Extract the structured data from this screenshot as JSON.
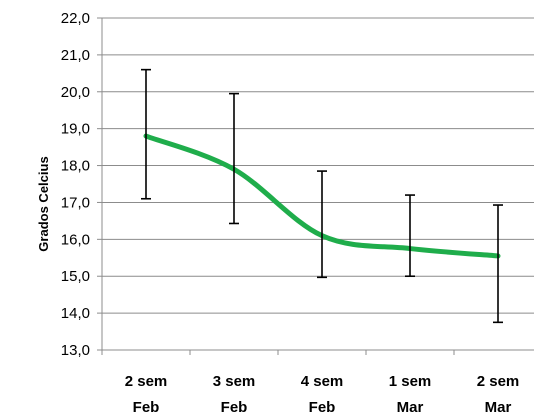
{
  "chart_data": {
    "type": "line",
    "title": "",
    "xlabel": "",
    "ylabel": "Grados Celcius",
    "ylim": [
      13.0,
      22.0
    ],
    "yticks": [
      "13,0",
      "14,0",
      "15,0",
      "16,0",
      "17,0",
      "18,0",
      "19,0",
      "20,0",
      "21,0",
      "22,0"
    ],
    "categories": [
      [
        "2 sem",
        "Feb"
      ],
      [
        "3 sem",
        "Feb"
      ],
      [
        "4 sem",
        "Feb"
      ],
      [
        "1 sem",
        "Mar"
      ],
      [
        "2 sem",
        "Mar"
      ]
    ],
    "series": [
      {
        "color": "#1fad4b",
        "values": [
          18.8,
          17.9,
          16.1,
          15.75,
          15.55
        ],
        "error_low": [
          17.1,
          16.43,
          14.97,
          15.0,
          13.75
        ],
        "error_high": [
          20.6,
          19.95,
          17.85,
          17.2,
          16.93
        ]
      }
    ],
    "grid": true,
    "smooth": true,
    "legend": "none",
    "grid_color": "#8c8c8c",
    "error_bar_color": "#000000"
  }
}
